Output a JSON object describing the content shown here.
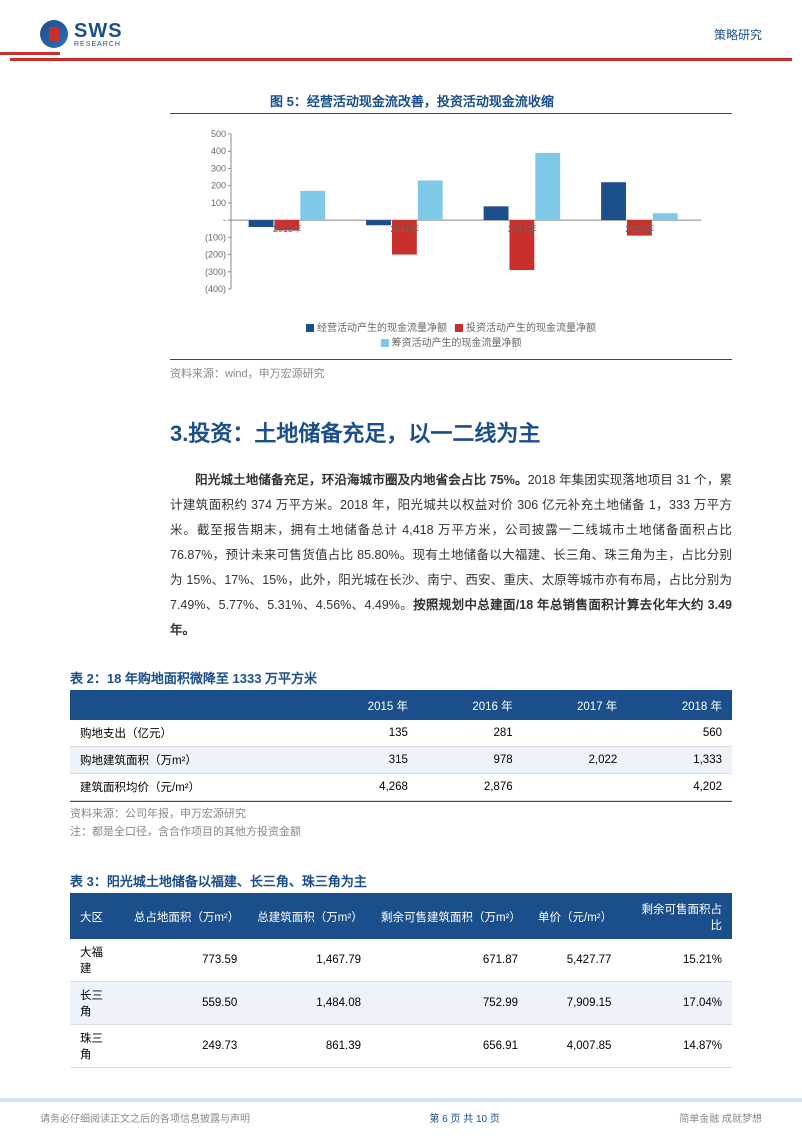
{
  "header": {
    "logo_text": "SWS",
    "logo_sub": "RESEARCH",
    "right": "策略研究"
  },
  "figure5": {
    "title": "图 5：经营活动现金流改善，投资活动现金流收缩",
    "type": "bar",
    "categories": [
      "2015年",
      "2016年",
      "2017年",
      "2018年"
    ],
    "series": [
      {
        "name": "经营活动产生的现金流量净额",
        "color": "#1b4f8c",
        "values": [
          -40,
          -30,
          80,
          220
        ]
      },
      {
        "name": "投资活动产生的现金流量净额",
        "color": "#c9302c",
        "values": [
          -60,
          -200,
          -290,
          -90
        ]
      },
      {
        "name": "筹资活动产生的现金流量净额",
        "color": "#7ec8e8",
        "values": [
          170,
          230,
          390,
          40
        ]
      }
    ],
    "ylim": [
      -400,
      500
    ],
    "yticks": [
      -400,
      -300,
      -200,
      -100,
      0,
      100,
      200,
      300,
      400,
      500
    ],
    "ytick_labels": [
      "(400)",
      "(300)",
      "(200)",
      "(100)",
      "-",
      "100",
      "200",
      "300",
      "400",
      "500"
    ],
    "axis_color": "#888",
    "label_fontsize": 10,
    "bar_width": 0.22,
    "source": "资料来源：wind，申万宏源研究"
  },
  "section3": {
    "title": "3.投资：土地储备充足，以一二线为主",
    "para_bold_lead": "阳光城土地储备充足，环沿海城市圈及内地省会占比 75%。",
    "para": "2018 年集团实现落地项目 31 个，累计建筑面积约 374 万平方米。2018 年，阳光城共以权益对价 306 亿元补充土地储备 1，333 万平方米。截至报告期末，拥有土地储备总计 4,418 万平方米，公司披露一二线城市土地储备面积占比 76.87%，预计未来可售货值占比 85.80%。现有土地储备以大福建、长三角、珠三角为主，占比分别为 15%、17%、15%，此外，阳光城在长沙、南宁、西安、重庆、太原等城市亦有布局，占比分别为 7.49%、5.77%、5.31%、4.56%、4.49%。",
    "para_bold_tail": "按照规划中总建面/18 年总销售面积计算去化年大约 3.49 年。"
  },
  "table2": {
    "title": "表 2：18 年购地面积微降至 1333 万平方米",
    "columns": [
      "",
      "2015 年",
      "2016 年",
      "2017 年",
      "2018 年"
    ],
    "rows": [
      [
        "购地支出（亿元）",
        "135",
        "281",
        "",
        "560"
      ],
      [
        "购地建筑面积（万m²）",
        "315",
        "978",
        "2,022",
        "1,333"
      ],
      [
        "建筑面积均价（元/m²）",
        "4,268",
        "2,876",
        "",
        "4,202"
      ]
    ],
    "source": "资料来源：公司年报，申万宏源研究",
    "note": "注：都是全口径，含合作项目的其他方投资金额"
  },
  "table3": {
    "title": "表 3：阳光城土地储备以福建、长三角、珠三角为主",
    "columns": [
      "大区",
      "总占地面积（万m²）",
      "总建筑面积（万m²）",
      "剩余可售建筑面积（万m²）",
      "单价（元/m²）",
      "剩余可售面积占比"
    ],
    "rows": [
      [
        "大福建",
        "773.59",
        "1,467.79",
        "671.87",
        "5,427.77",
        "15.21%"
      ],
      [
        "长三角",
        "559.50",
        "1,484.08",
        "752.99",
        "7,909.15",
        "17.04%"
      ],
      [
        "珠三角",
        "249.73",
        "861.39",
        "656.91",
        "4,007.85",
        "14.87%"
      ]
    ]
  },
  "footer": {
    "left": "请务必仔细阅读正文之后的各项信息披露与声明",
    "center": "第 6 页 共 10 页",
    "right": "简单金融 成就梦想"
  }
}
